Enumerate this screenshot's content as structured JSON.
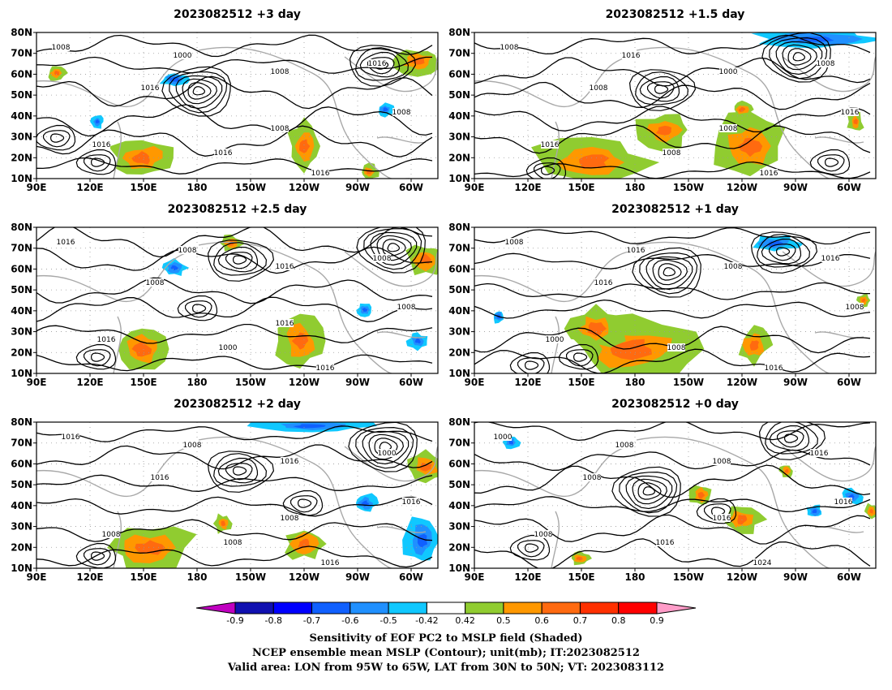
{
  "chart_data": {
    "type": "map-panels",
    "panels": [
      {
        "title": "2023082512  +3 day"
      },
      {
        "title": "2023082512  +1.5 day"
      },
      {
        "title": "2023082512  +2.5 day"
      },
      {
        "title": "2023082512  +1 day"
      },
      {
        "title": "2023082512  +2 day"
      },
      {
        "title": "2023082512  +0 day"
      }
    ],
    "x_ticks": [
      "90E",
      "120E",
      "150E",
      "180",
      "150W",
      "120W",
      "90W",
      "60W"
    ],
    "y_ticks": [
      "80N",
      "70N",
      "60N",
      "50N",
      "40N",
      "30N",
      "20N",
      "10N"
    ],
    "colorbar": {
      "labels": [
        "-0.9",
        "-0.8",
        "-0.7",
        "-0.6",
        "-0.5",
        "-0.42",
        "0.42",
        "0.5",
        "0.6",
        "0.7",
        "0.8",
        "0.9"
      ],
      "colors": [
        "#c000c0",
        "#1010b0",
        "#0000ff",
        "#1060ff",
        "#2090ff",
        "#10c8ff",
        "#ffffff",
        "#90cc30",
        "#ff9800",
        "#ff6a10",
        "#ff3000",
        "#ff0000",
        "#ff9cc8"
      ]
    },
    "caption": [
      "Sensitivity of EOF PC2 to MSLP field (Shaded)",
      "NCEP ensemble mean MSLP (Contour); unit(mb); IT:2023082512",
      "Valid area: LON from 95W to 65W, LAT from 30N to 50N; VT: 2023083112"
    ],
    "contour_labels": [
      [
        "1008",
        "1000",
        "1008",
        "1016",
        "1016",
        "1016",
        "1016",
        "1008",
        "1016",
        "1008"
      ],
      [
        "1008",
        "1016",
        "1000",
        "1008",
        "1016",
        "1008",
        "1016",
        "1016",
        "1008",
        "1008"
      ],
      [
        "1016",
        "1008",
        "1016",
        "1008",
        "1016",
        "1000",
        "1016",
        "1008",
        "1008",
        "1016"
      ],
      [
        "1008",
        "1016",
        "1008",
        "1016",
        "1000",
        "1008",
        "1016",
        "1008",
        "1016"
      ],
      [
        "1016",
        "1008",
        "1016",
        "1000",
        "1008",
        "1008",
        "1016",
        "1016",
        "1016",
        "1008"
      ],
      [
        "1000",
        "1008",
        "1008",
        "1016",
        "1008",
        "1016",
        "1024",
        "1016",
        "1008",
        "1016"
      ]
    ]
  }
}
